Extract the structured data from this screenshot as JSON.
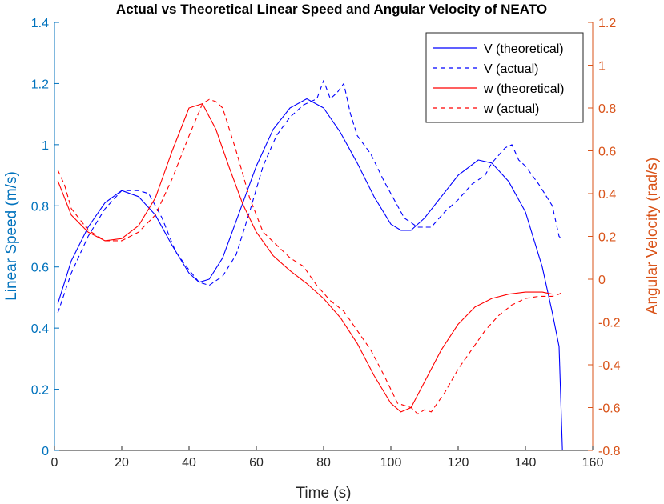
{
  "chart_data": {
    "type": "line",
    "title": "Actual vs Theoretical Linear Speed and Angular Velocity of NEATO",
    "xlabel": "Time (s)",
    "ylabel_left": "Linear Speed (m/s)",
    "ylabel_right": "Angular Velocity (rad/s)",
    "xlim": [
      0,
      160
    ],
    "ylim_left": [
      0,
      1.4
    ],
    "ylim_right": [
      -0.8,
      1.2
    ],
    "xticks": [
      "0",
      "20",
      "40",
      "60",
      "80",
      "100",
      "120",
      "140",
      "160"
    ],
    "yticks_left": [
      "0",
      "0.2",
      "0.4",
      "0.6",
      "0.8",
      "1",
      "1.2",
      "1.4"
    ],
    "yticks_right": [
      "-0.8",
      "-0.6",
      "-0.4",
      "-0.2",
      "0",
      "0.2",
      "0.4",
      "0.6",
      "0.8",
      "1",
      "1.2"
    ],
    "grid": false,
    "legend_position": "top-right",
    "colors": {
      "left_axis": "#0072BD",
      "right_axis": "#D95319",
      "v_line": "#0000FF",
      "w_line": "#FF0000"
    },
    "series": [
      {
        "name": "V (theoretical)",
        "axis": "left",
        "style": "solid",
        "color": "#0000FF",
        "x": [
          1,
          5,
          10,
          15,
          20,
          25,
          30,
          35,
          40,
          43,
          46,
          50,
          55,
          60,
          65,
          70,
          75,
          80,
          85,
          90,
          95,
          100,
          103,
          106,
          110,
          115,
          120,
          126,
          130,
          135,
          140,
          145,
          148,
          150,
          151
        ],
        "y": [
          0.48,
          0.62,
          0.73,
          0.81,
          0.85,
          0.83,
          0.77,
          0.67,
          0.58,
          0.55,
          0.56,
          0.63,
          0.78,
          0.93,
          1.05,
          1.12,
          1.15,
          1.12,
          1.04,
          0.94,
          0.83,
          0.74,
          0.72,
          0.72,
          0.76,
          0.83,
          0.9,
          0.95,
          0.94,
          0.88,
          0.78,
          0.6,
          0.45,
          0.34,
          0.0
        ]
      },
      {
        "name": "V (actual)",
        "axis": "left",
        "style": "dashed",
        "color": "#0000FF",
        "x": [
          1,
          5,
          10,
          15,
          20,
          25,
          28,
          32,
          36,
          40,
          43,
          46,
          50,
          54,
          58,
          62,
          66,
          70,
          74,
          78,
          80,
          82,
          84,
          86,
          88,
          90,
          94,
          98,
          100,
          104,
          108,
          112,
          116,
          120,
          124,
          128,
          130,
          134,
          136,
          138,
          140,
          144,
          148,
          150,
          151
        ],
        "y": [
          0.45,
          0.58,
          0.7,
          0.79,
          0.85,
          0.85,
          0.84,
          0.76,
          0.65,
          0.59,
          0.55,
          0.54,
          0.57,
          0.64,
          0.78,
          0.93,
          1.03,
          1.09,
          1.13,
          1.15,
          1.21,
          1.15,
          1.17,
          1.2,
          1.1,
          1.03,
          0.97,
          0.88,
          0.84,
          0.76,
          0.73,
          0.73,
          0.78,
          0.82,
          0.87,
          0.9,
          0.94,
          0.99,
          1.0,
          0.95,
          0.93,
          0.87,
          0.8,
          0.7,
          0.69
        ]
      },
      {
        "name": "w (theoretical)",
        "axis": "right",
        "style": "solid",
        "color": "#FF0000",
        "x": [
          1,
          5,
          10,
          15,
          20,
          25,
          30,
          35,
          40,
          44,
          48,
          52,
          56,
          60,
          65,
          70,
          75,
          80,
          85,
          90,
          95,
          100,
          103,
          106,
          110,
          115,
          120,
          125,
          130,
          135,
          140,
          145,
          148
        ],
        "y": [
          0.46,
          0.3,
          0.22,
          0.18,
          0.19,
          0.25,
          0.38,
          0.6,
          0.8,
          0.82,
          0.7,
          0.52,
          0.35,
          0.22,
          0.11,
          0.04,
          -0.02,
          -0.09,
          -0.18,
          -0.3,
          -0.45,
          -0.58,
          -0.62,
          -0.6,
          -0.48,
          -0.33,
          -0.21,
          -0.13,
          -0.09,
          -0.07,
          -0.06,
          -0.06,
          -0.07
        ]
      },
      {
        "name": "w (actual)",
        "axis": "right",
        "style": "dashed",
        "color": "#FF0000",
        "x": [
          1,
          3,
          5,
          10,
          15,
          20,
          25,
          30,
          35,
          40,
          44,
          46,
          48,
          50,
          54,
          58,
          62,
          66,
          70,
          74,
          78,
          82,
          86,
          90,
          94,
          98,
          102,
          106,
          108,
          110,
          112,
          116,
          120,
          124,
          128,
          132,
          136,
          140,
          144,
          148,
          150,
          151
        ],
        "y": [
          0.51,
          0.44,
          0.33,
          0.23,
          0.18,
          0.18,
          0.22,
          0.3,
          0.47,
          0.67,
          0.82,
          0.84,
          0.83,
          0.8,
          0.6,
          0.38,
          0.22,
          0.16,
          0.1,
          0.06,
          -0.03,
          -0.1,
          -0.15,
          -0.24,
          -0.33,
          -0.45,
          -0.58,
          -0.6,
          -0.63,
          -0.61,
          -0.62,
          -0.53,
          -0.42,
          -0.33,
          -0.24,
          -0.17,
          -0.12,
          -0.09,
          -0.08,
          -0.08,
          -0.07,
          -0.06
        ]
      }
    ]
  }
}
